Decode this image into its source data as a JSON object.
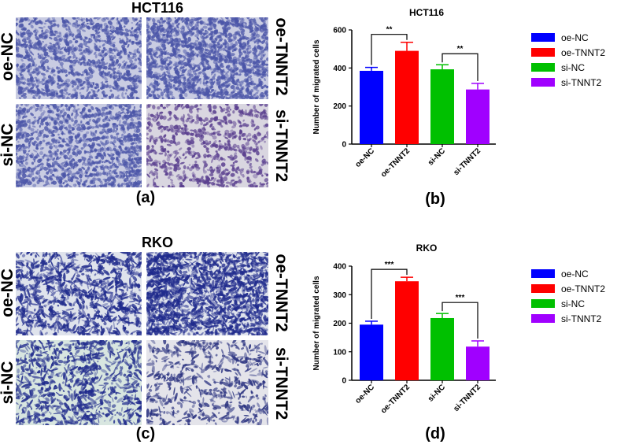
{
  "panels": {
    "a": {
      "label": "(a)",
      "title": "HCT116",
      "tiles": [
        {
          "label": "oe-NC",
          "side": "left"
        },
        {
          "label": "oe-TNNT2",
          "side": "right"
        },
        {
          "label": "si-NC",
          "side": "left"
        },
        {
          "label": "si-TNNT2",
          "side": "right"
        }
      ],
      "colors": {
        "background": "#c9cce2",
        "cells": "#4b55a8"
      }
    },
    "b": {
      "label": "(b)"
    },
    "c": {
      "label": "(c)",
      "title": "RKO",
      "tiles": [
        {
          "label": "oe-NC",
          "side": "left"
        },
        {
          "label": "oe-TNNT2",
          "side": "right"
        },
        {
          "label": "si-NC",
          "side": "left"
        },
        {
          "label": "si-TNNT2",
          "side": "right"
        }
      ],
      "colors": {
        "background": "#dfe3ec",
        "cells": "#1f2a8c"
      }
    },
    "d": {
      "label": "(d)"
    }
  },
  "chart_data": [
    {
      "type": "bar",
      "title": "HCT116",
      "ylabel": "Number of migrated cells",
      "xlabel": "",
      "categories": [
        "oe-NC",
        "oe-TNNT2",
        "si-NC",
        "si-TNNT2"
      ],
      "values": [
        385,
        490,
        393,
        287
      ],
      "errors": [
        18,
        45,
        24,
        32
      ],
      "colors": [
        "#0000ff",
        "#ff0000",
        "#00c000",
        "#a000ff"
      ],
      "ylim": [
        0,
        600
      ],
      "yticks": [
        0,
        200,
        400,
        600
      ],
      "legend": [
        "oe-NC",
        "oe-TNNT2",
        "si-NC",
        "si-TNNT2"
      ],
      "legend_position": "right",
      "significance": [
        {
          "from": 0,
          "to": 1,
          "label": "**"
        },
        {
          "from": 2,
          "to": 3,
          "label": "**"
        }
      ]
    },
    {
      "type": "bar",
      "title": "RKO",
      "ylabel": "Number of migrated cells",
      "xlabel": "",
      "categories": [
        "oe-NC",
        "oe-TNNT2",
        "si-NC",
        "si-TNNT2"
      ],
      "values": [
        195,
        347,
        218,
        118
      ],
      "errors": [
        12,
        14,
        16,
        20
      ],
      "colors": [
        "#0000ff",
        "#ff0000",
        "#00c000",
        "#a000ff"
      ],
      "ylim": [
        0,
        400
      ],
      "yticks": [
        0,
        100,
        200,
        300,
        400
      ],
      "legend": [
        "oe-NC",
        "oe-TNNT2",
        "si-NC",
        "si-TNNT2"
      ],
      "legend_position": "right",
      "significance": [
        {
          "from": 0,
          "to": 1,
          "label": "***"
        },
        {
          "from": 2,
          "to": 3,
          "label": "***"
        }
      ]
    }
  ]
}
